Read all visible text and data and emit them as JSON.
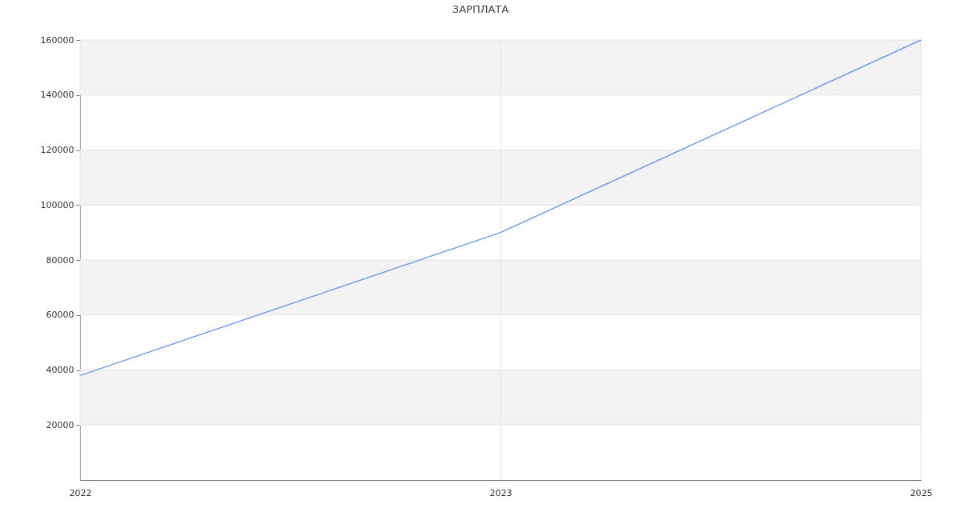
{
  "chart_data": {
    "type": "line",
    "title": "ЗАРПЛАТА",
    "categories": [
      "2022",
      "2023",
      "2025"
    ],
    "values": [
      38000,
      90000,
      160000
    ],
    "color": "#6e9cf2",
    "ylim": [
      0,
      160000
    ],
    "yticks": [
      20000,
      40000,
      60000,
      80000,
      100000,
      120000,
      140000,
      160000
    ],
    "grid": true,
    "bands": [
      {
        "axis": "y",
        "from": 20000,
        "to": 40000,
        "color": "#f3f3f3"
      },
      {
        "axis": "y",
        "from": 60000,
        "to": 80000,
        "color": "#f3f3f3"
      },
      {
        "axis": "y",
        "from": 100000,
        "to": 120000,
        "color": "#f3f3f3"
      },
      {
        "axis": "y",
        "from": 140000,
        "to": 160000,
        "color": "#f3f3f3"
      }
    ]
  }
}
